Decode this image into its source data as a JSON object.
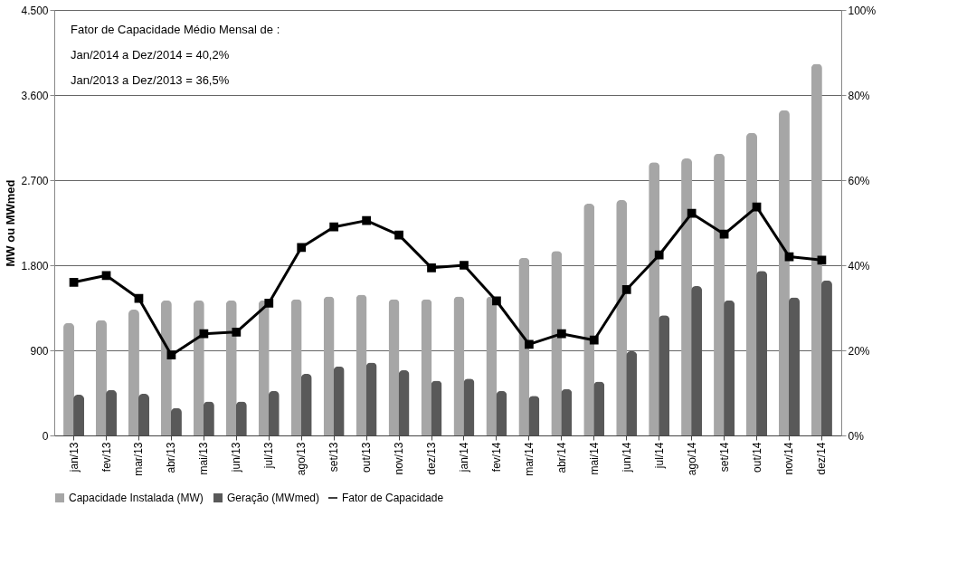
{
  "chart_data": {
    "type": "bar",
    "ylabel": "MW ou MWmed",
    "categories": [
      "jan/13",
      "fev/13",
      "mar/13",
      "abr/13",
      "mai/13",
      "jun/13",
      "jul/13",
      "ago/13",
      "set/13",
      "out/13",
      "nov/13",
      "dez/13",
      "jan/14",
      "fev/14",
      "mar/14",
      "abr/14",
      "mai/14",
      "jun/14",
      "jul/14",
      "ago/14",
      "set/14",
      "out/14",
      "nov/14",
      "dez/14"
    ],
    "series": [
      {
        "name": "Capacidade Instalada (MW)",
        "color": "#a6a6a6",
        "values": [
          1190,
          1220,
          1330,
          1430,
          1430,
          1430,
          1430,
          1440,
          1470,
          1490,
          1440,
          1440,
          1470,
          1470,
          1880,
          1950,
          2450,
          2490,
          2890,
          2930,
          2980,
          3200,
          3440,
          3930
        ]
      },
      {
        "name": "Geração (MWmed)",
        "color": "#595959",
        "values": [
          430,
          480,
          440,
          290,
          360,
          360,
          470,
          650,
          730,
          770,
          690,
          580,
          600,
          470,
          420,
          490,
          570,
          890,
          1270,
          1580,
          1430,
          1740,
          1460,
          1640
        ]
      },
      {
        "name": "Fator de Capacidade",
        "type": "line",
        "axis": "y2",
        "color": "#000000",
        "marker": "square",
        "line_style": "solid",
        "values": [
          36.0,
          37.6,
          32.2,
          18.9,
          23.9,
          24.3,
          31.1,
          44.2,
          49.0,
          50.5,
          47.1,
          39.4,
          40.0,
          31.6,
          21.4,
          23.9,
          22.4,
          34.3,
          42.4,
          52.2,
          47.3,
          53.7,
          42.0,
          41.2
        ]
      }
    ],
    "ylim": [
      0,
      4500
    ],
    "yticks": [
      {
        "value": 0,
        "label": "0"
      },
      {
        "value": 900,
        "label": "900"
      },
      {
        "value": 1800,
        "label": "1.800"
      },
      {
        "value": 2700,
        "label": "2.700"
      },
      {
        "value": 3600,
        "label": "3.600"
      },
      {
        "value": 4500,
        "label": "4.500"
      }
    ],
    "y2lim": [
      0,
      100
    ],
    "y2ticks": [
      {
        "value": 0,
        "label": "0%"
      },
      {
        "value": 20,
        "label": "20%"
      },
      {
        "value": 40,
        "label": "40%"
      },
      {
        "value": 60,
        "label": "60%"
      },
      {
        "value": 80,
        "label": "80%"
      },
      {
        "value": 100,
        "label": "100%"
      }
    ],
    "grid": "y",
    "legend": "bottom",
    "annotations": [
      "Fator de Capacidade Médio Mensal de :",
      "Jan/2014 a Dez/2014 = 40,2%",
      "Jan/2013 a Dez/2013 = 36,5%"
    ]
  }
}
